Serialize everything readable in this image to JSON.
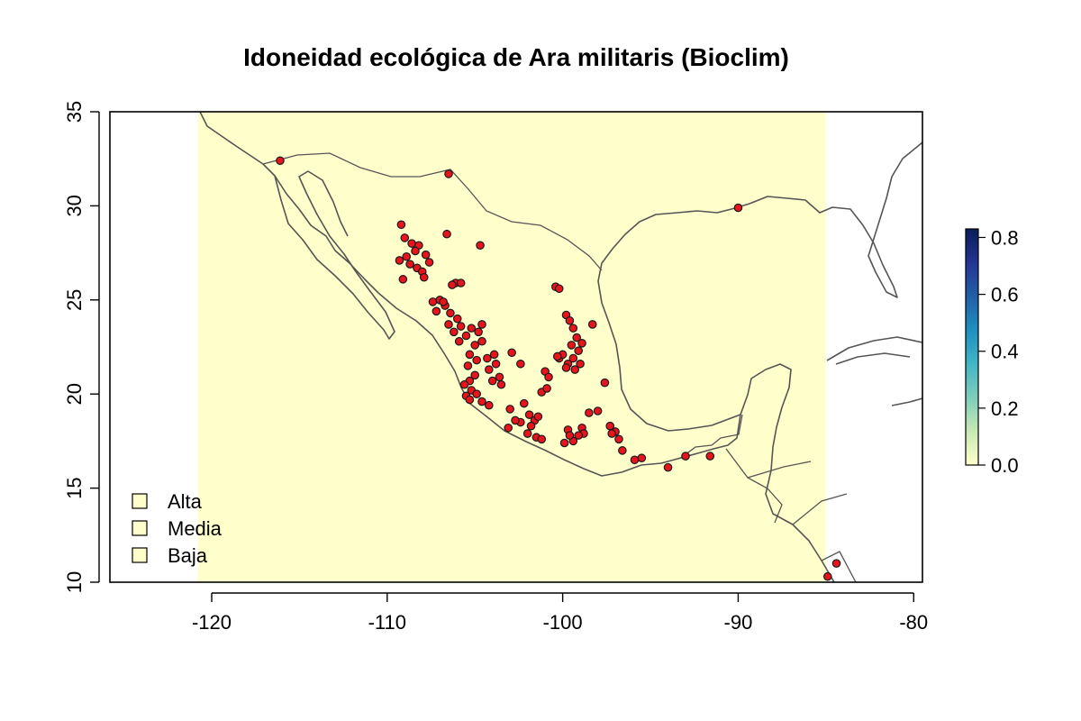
{
  "chart_data": {
    "type": "scatter",
    "title": "Idoneidad ecológica de Ara militaris (Bioclim)",
    "xlim": [
      -125.8,
      -79.5
    ],
    "ylim": [
      10,
      35
    ],
    "x_ticks": [
      -120,
      -110,
      -100,
      -90,
      -80
    ],
    "y_ticks": [
      10,
      15,
      20,
      25,
      30,
      35
    ],
    "raster_extent": {
      "x": [
        -120.8,
        -85
      ],
      "y": [
        10,
        35
      ]
    },
    "raster_value": 0.0,
    "raster_color": "#ffffcc",
    "colorbar": {
      "min": 0.0,
      "max": 0.83,
      "ticks": [
        "0.0",
        "0.2",
        "0.4",
        "0.6",
        "0.8"
      ],
      "tick_values": [
        0.0,
        0.2,
        0.4,
        0.6,
        0.8
      ],
      "colors": [
        "#ffffcc",
        "#c7e9b4",
        "#7fcdbb",
        "#41b6c4",
        "#1d91c0",
        "#225ea8",
        "#253494",
        "#081d58"
      ]
    },
    "legend": {
      "position": "bottom-left",
      "entries": [
        {
          "label": "Alta",
          "color": "#ffffcc"
        },
        {
          "label": "Media",
          "color": "#ffffcc"
        },
        {
          "label": "Baja",
          "color": "#ffffcc"
        }
      ]
    },
    "points_color": "#e8141c",
    "points": [
      [
        -116.1,
        32.4
      ],
      [
        -106.5,
        31.7
      ],
      [
        -90.0,
        29.9
      ],
      [
        -109.2,
        29.0
      ],
      [
        -109.0,
        28.3
      ],
      [
        -108.6,
        28.0
      ],
      [
        -108.2,
        27.9
      ],
      [
        -107.8,
        27.4
      ],
      [
        -108.4,
        27.6
      ],
      [
        -108.9,
        27.3
      ],
      [
        -109.3,
        27.1
      ],
      [
        -108.7,
        26.9
      ],
      [
        -108.3,
        26.7
      ],
      [
        -108.0,
        26.5
      ],
      [
        -107.6,
        27.0
      ],
      [
        -109.1,
        26.1
      ],
      [
        -106.6,
        28.5
      ],
      [
        -104.7,
        27.9
      ],
      [
        -106.1,
        25.9
      ],
      [
        -105.8,
        25.9
      ],
      [
        -106.3,
        25.8
      ],
      [
        -107.4,
        24.9
      ],
      [
        -107.0,
        25.0
      ],
      [
        -106.7,
        24.7
      ],
      [
        -106.4,
        24.3
      ],
      [
        -107.2,
        24.4
      ],
      [
        -106.0,
        24.0
      ],
      [
        -105.8,
        23.6
      ],
      [
        -106.2,
        23.3
      ],
      [
        -105.5,
        23.1
      ],
      [
        -105.9,
        22.8
      ],
      [
        -106.5,
        23.7
      ],
      [
        -105.2,
        23.5
      ],
      [
        -104.8,
        23.3
      ],
      [
        -104.6,
        23.7
      ],
      [
        -105.0,
        22.6
      ],
      [
        -105.3,
        22.1
      ],
      [
        -104.9,
        21.8
      ],
      [
        -105.4,
        21.5
      ],
      [
        -104.3,
        21.9
      ],
      [
        -103.9,
        22.1
      ],
      [
        -104.2,
        21.3
      ],
      [
        -105.0,
        21.0
      ],
      [
        -105.3,
        20.7
      ],
      [
        -105.6,
        20.5
      ],
      [
        -105.2,
        20.2
      ],
      [
        -105.5,
        19.9
      ],
      [
        -104.9,
        20.0
      ],
      [
        -105.3,
        19.7
      ],
      [
        -104.6,
        19.6
      ],
      [
        -104.2,
        19.4
      ],
      [
        -104.0,
        20.7
      ],
      [
        -103.6,
        20.9
      ],
      [
        -103.8,
        21.6
      ],
      [
        -103.0,
        19.2
      ],
      [
        -103.1,
        18.2
      ],
      [
        -102.2,
        19.5
      ],
      [
        -101.9,
        18.9
      ],
      [
        -101.6,
        18.6
      ],
      [
        -101.4,
        18.8
      ],
      [
        -101.8,
        18.3
      ],
      [
        -102.0,
        17.9
      ],
      [
        -101.5,
        17.7
      ],
      [
        -101.2,
        17.6
      ],
      [
        -102.4,
        18.5
      ],
      [
        -102.7,
        18.6
      ],
      [
        -101.0,
        21.2
      ],
      [
        -100.8,
        20.9
      ],
      [
        -101.2,
        20.1
      ],
      [
        -100.2,
        21.9
      ],
      [
        -100.0,
        22.1
      ],
      [
        -100.4,
        25.7
      ],
      [
        -100.2,
        25.6
      ],
      [
        -99.8,
        24.2
      ],
      [
        -99.6,
        23.9
      ],
      [
        -99.4,
        23.5
      ],
      [
        -99.2,
        23.0
      ],
      [
        -99.5,
        22.6
      ],
      [
        -99.1,
        22.3
      ],
      [
        -99.4,
        21.9
      ],
      [
        -99.7,
        21.6
      ],
      [
        -99.3,
        21.3
      ],
      [
        -99.8,
        21.4
      ],
      [
        -98.9,
        22.7
      ],
      [
        -98.3,
        23.7
      ],
      [
        -99.0,
        21.6
      ],
      [
        -97.3,
        18.3
      ],
      [
        -97.0,
        18.0
      ],
      [
        -96.8,
        17.6
      ],
      [
        -97.2,
        17.9
      ],
      [
        -96.6,
        17.0
      ],
      [
        -95.5,
        16.6
      ],
      [
        -95.9,
        16.5
      ],
      [
        -99.7,
        18.1
      ],
      [
        -99.9,
        17.4
      ],
      [
        -99.4,
        17.5
      ],
      [
        -98.9,
        18.2
      ],
      [
        -98.8,
        17.9
      ],
      [
        -99.1,
        17.8
      ],
      [
        -98.5,
        19.0
      ],
      [
        -98.0,
        19.1
      ],
      [
        -99.6,
        17.8
      ],
      [
        -100.9,
        20.3
      ],
      [
        -102.4,
        21.6
      ],
      [
        -102.9,
        22.2
      ],
      [
        -97.6,
        20.6
      ],
      [
        -93.0,
        16.7
      ],
      [
        -91.6,
        16.7
      ],
      [
        -94.0,
        16.1
      ],
      [
        -84.4,
        11.0
      ],
      [
        -84.9,
        10.3
      ],
      [
        -107.9,
        26.2
      ],
      [
        -106.8,
        24.9
      ],
      [
        -104.6,
        22.8
      ],
      [
        -103.5,
        20.5
      ],
      [
        -100.3,
        22.0
      ]
    ]
  }
}
